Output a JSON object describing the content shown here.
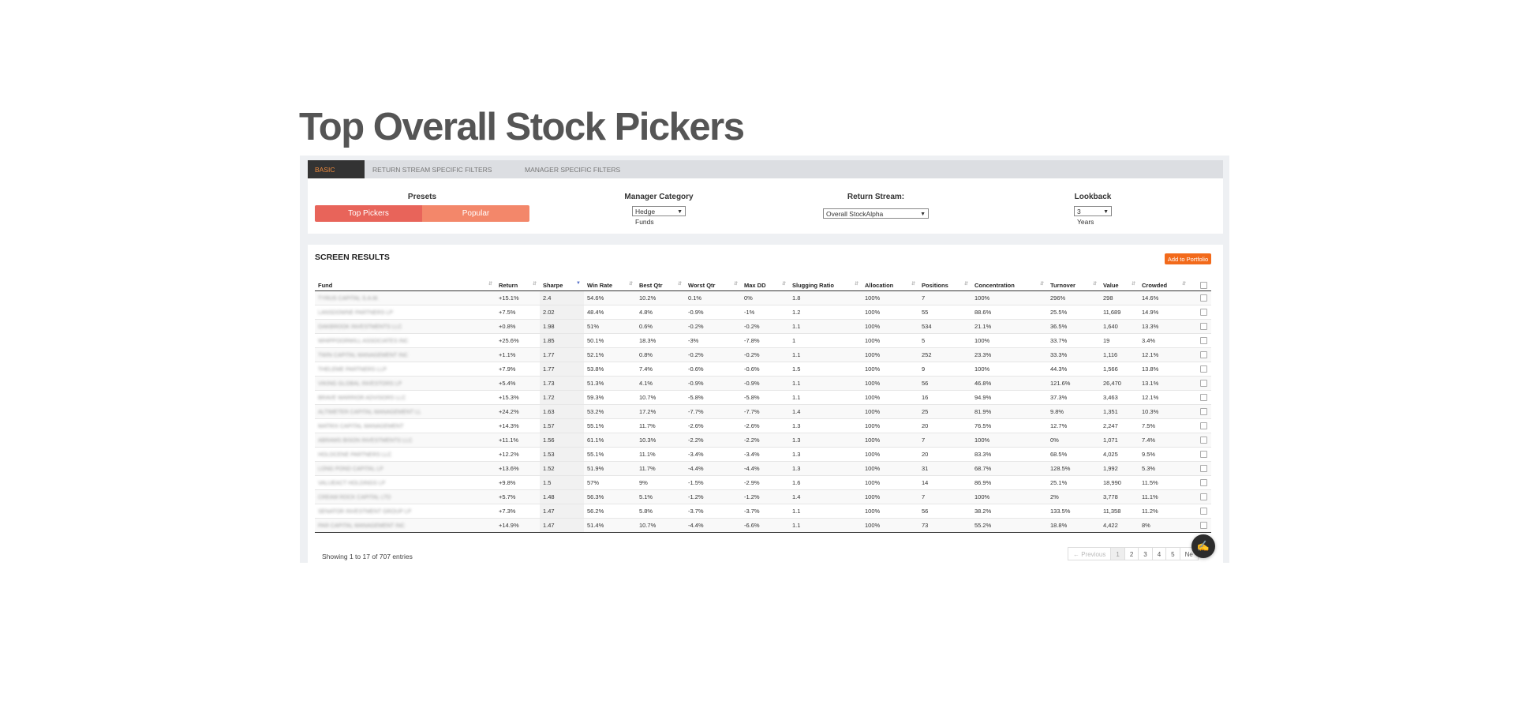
{
  "page": {
    "title": "Top Overall Stock Pickers"
  },
  "tabs": [
    "BASIC FILTERS",
    "RETURN STREAM SPECIFIC FILTERS",
    "MANAGER SPECIFIC FILTERS"
  ],
  "filters": {
    "presets": {
      "label": "Presets",
      "top": "Top Pickers",
      "popular": "Popular"
    },
    "manager_category": {
      "label": "Manager Category",
      "value": "Hedge Funds"
    },
    "return_stream": {
      "label": "Return Stream:",
      "value": "Overall StockAlpha"
    },
    "lookback": {
      "label": "Lookback",
      "value": "3 Years"
    }
  },
  "results": {
    "title": "SCREEN RESULTS",
    "add_button": "Add to Portfolio",
    "columns": [
      "Fund",
      "Return",
      "Sharpe",
      "Win Rate",
      "Best Qtr",
      "Worst Qtr",
      "Max DD",
      "Slugging Ratio",
      "Allocation",
      "Positions",
      "Concentration",
      "Turnover",
      "Value",
      "Crowded"
    ],
    "rows": [
      [
        "TYRUS CAPITAL S.A.M.",
        "+15.1%",
        "2.4",
        "54.6%",
        "10.2%",
        "0.1%",
        "0%",
        "1.8",
        "100%",
        "7",
        "100%",
        "296%",
        "298",
        "14.6%"
      ],
      [
        "LANSDOWNE PARTNERS LP",
        "+7.5%",
        "2.02",
        "48.4%",
        "4.8%",
        "-0.9%",
        "-1%",
        "1.2",
        "100%",
        "55",
        "88.6%",
        "25.5%",
        "11,689",
        "14.9%"
      ],
      [
        "OAKBROOK INVESTMENTS LLC",
        "+0.8%",
        "1.98",
        "51%",
        "0.6%",
        "-0.2%",
        "-0.2%",
        "1.1",
        "100%",
        "534",
        "21.1%",
        "36.5%",
        "1,640",
        "13.3%"
      ],
      [
        "WHIPPOORWILL ASSOCIATES INC",
        "+25.6%",
        "1.85",
        "50.1%",
        "18.3%",
        "-3%",
        "-7.8%",
        "1",
        "100%",
        "5",
        "100%",
        "33.7%",
        "19",
        "3.4%"
      ],
      [
        "TWIN CAPITAL MANAGEMENT INC",
        "+1.1%",
        "1.77",
        "52.1%",
        "0.8%",
        "-0.2%",
        "-0.2%",
        "1.1",
        "100%",
        "252",
        "23.3%",
        "33.3%",
        "1,116",
        "12.1%"
      ],
      [
        "THELEME PARTNERS LLP",
        "+7.9%",
        "1.77",
        "53.8%",
        "7.4%",
        "-0.6%",
        "-0.6%",
        "1.5",
        "100%",
        "9",
        "100%",
        "44.3%",
        "1,566",
        "13.8%"
      ],
      [
        "VIKING GLOBAL INVESTORS LP",
        "+5.4%",
        "1.73",
        "51.3%",
        "4.1%",
        "-0.9%",
        "-0.9%",
        "1.1",
        "100%",
        "56",
        "46.8%",
        "121.6%",
        "26,470",
        "13.1%"
      ],
      [
        "BRAVE WARRIOR ADVISORS LLC",
        "+15.3%",
        "1.72",
        "59.3%",
        "10.7%",
        "-5.8%",
        "-5.8%",
        "1.1",
        "100%",
        "16",
        "94.9%",
        "37.3%",
        "3,463",
        "12.1%"
      ],
      [
        "ALTIMETER CAPITAL MANAGEMENT LL",
        "+24.2%",
        "1.63",
        "53.2%",
        "17.2%",
        "-7.7%",
        "-7.7%",
        "1.4",
        "100%",
        "25",
        "81.9%",
        "9.8%",
        "1,351",
        "10.3%"
      ],
      [
        "MATRIX CAPITAL MANAGEMENT",
        "+14.3%",
        "1.57",
        "55.1%",
        "11.7%",
        "-2.6%",
        "-2.6%",
        "1.3",
        "100%",
        "20",
        "76.5%",
        "12.7%",
        "2,247",
        "7.5%"
      ],
      [
        "ABRAMS BISON INVESTMENTS LLC",
        "+11.1%",
        "1.56",
        "61.1%",
        "10.3%",
        "-2.2%",
        "-2.2%",
        "1.3",
        "100%",
        "7",
        "100%",
        "0%",
        "1,071",
        "7.4%"
      ],
      [
        "HOLOCENE PARTNERS LLC",
        "+12.2%",
        "1.53",
        "55.1%",
        "11.1%",
        "-3.4%",
        "-3.4%",
        "1.3",
        "100%",
        "20",
        "83.3%",
        "68.5%",
        "4,025",
        "9.5%"
      ],
      [
        "LONG POND CAPITAL LP",
        "+13.6%",
        "1.52",
        "51.9%",
        "11.7%",
        "-4.4%",
        "-4.4%",
        "1.3",
        "100%",
        "31",
        "68.7%",
        "128.5%",
        "1,992",
        "5.3%"
      ],
      [
        "VALUEACT HOLDINGS LP",
        "+9.8%",
        "1.5",
        "57%",
        "9%",
        "-1.5%",
        "-2.9%",
        "1.6",
        "100%",
        "14",
        "86.9%",
        "25.1%",
        "18,990",
        "11.5%"
      ],
      [
        "CREAM ROCK CAPITAL LTD",
        "+5.7%",
        "1.48",
        "56.3%",
        "5.1%",
        "-1.2%",
        "-1.2%",
        "1.4",
        "100%",
        "7",
        "100%",
        "2%",
        "3,778",
        "11.1%"
      ],
      [
        "SENATOR INVESTMENT GROUP LP",
        "+7.3%",
        "1.47",
        "56.2%",
        "5.8%",
        "-3.7%",
        "-3.7%",
        "1.1",
        "100%",
        "56",
        "38.2%",
        "133.5%",
        "11,358",
        "11.2%"
      ],
      [
        "PAR CAPITAL MANAGEMENT INC",
        "+14.9%",
        "1.47",
        "51.4%",
        "10.7%",
        "-4.4%",
        "-6.6%",
        "1.1",
        "100%",
        "73",
        "55.2%",
        "18.8%",
        "4,422",
        "8%"
      ]
    ],
    "showing": "Showing 1 to 17 of 707 entries",
    "pagination": [
      "← Previous",
      "1",
      "2",
      "3",
      "4",
      "5",
      "Ne"
    ]
  },
  "colors": {
    "accent": "#f26a1b",
    "preset_top": "#e8645a",
    "preset_popular": "#f3876a",
    "active_tab_text": "#f08a3c"
  },
  "icons": {
    "chat": "chat-bubble-icon",
    "sort": "sort-arrows-icon"
  }
}
